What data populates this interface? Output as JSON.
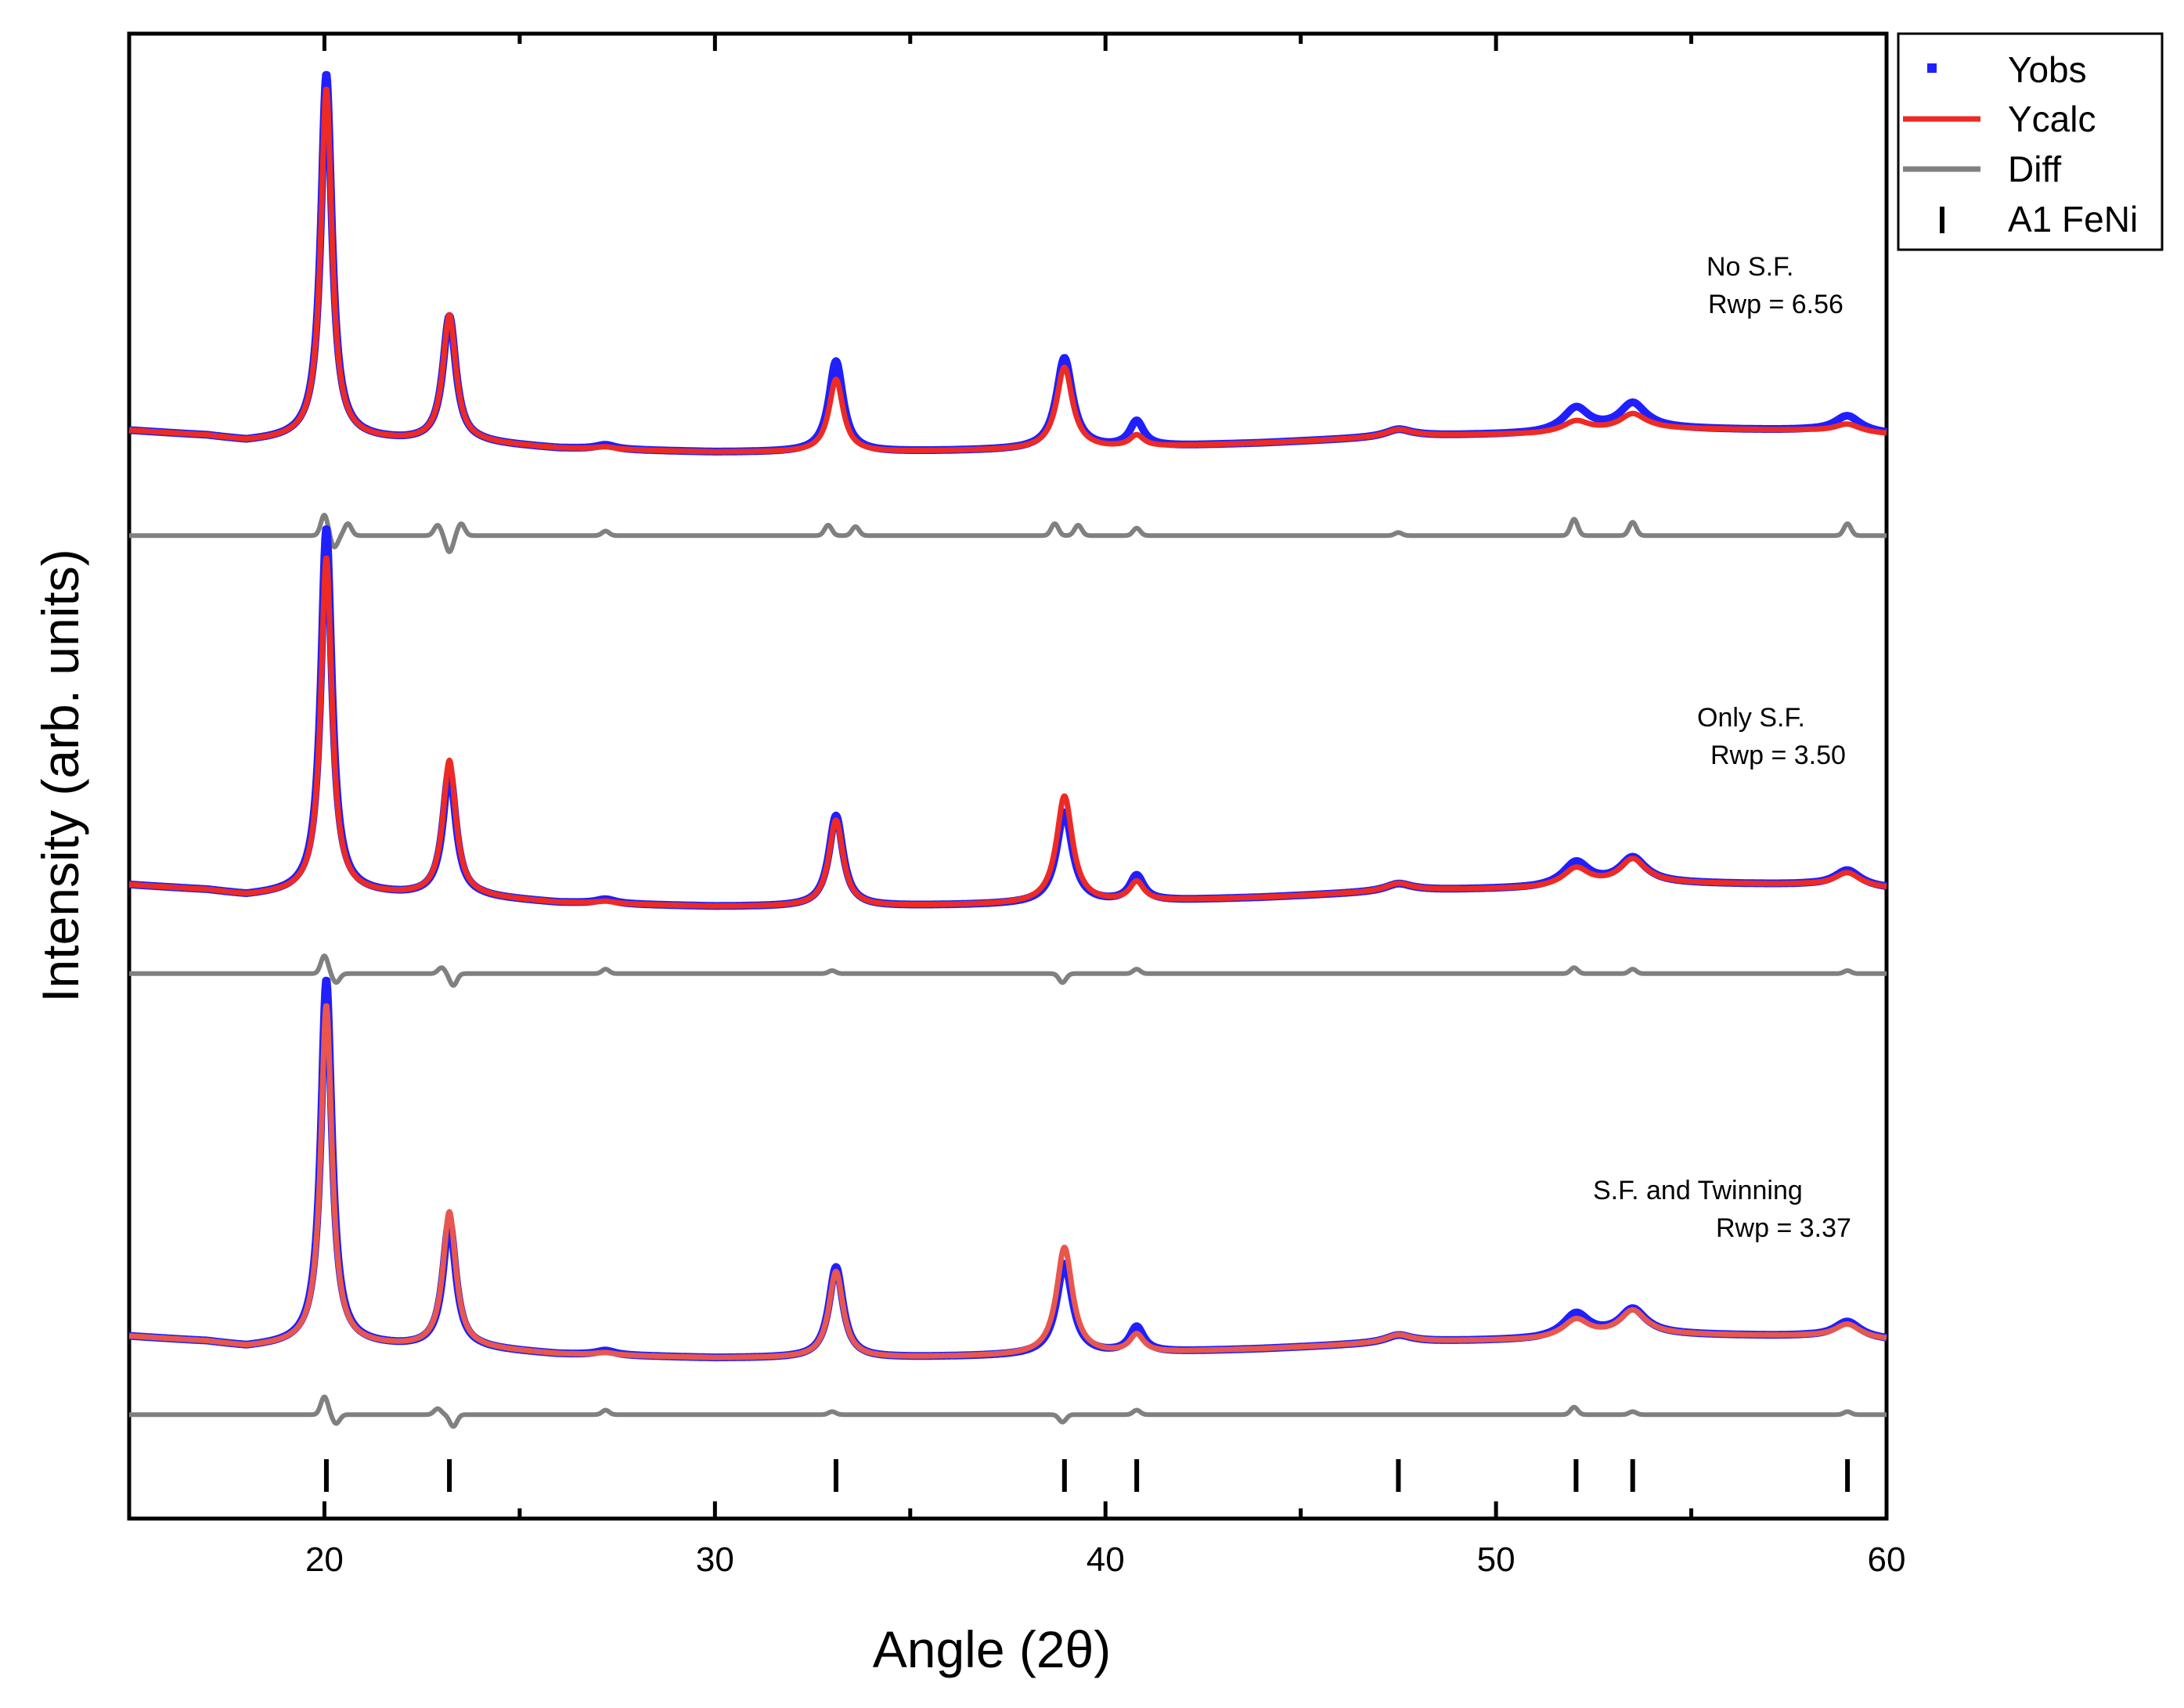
{
  "chart_data": {
    "type": "line",
    "xlabel": "Angle (2θ)",
    "ylabel": "Intensity (arb. units)",
    "xlim": [
      15,
      60
    ],
    "ylim": [
      0,
      100
    ],
    "x_ticks": [
      20,
      30,
      40,
      50,
      60
    ],
    "x_minor_ticks": [
      15,
      25,
      35,
      45,
      55
    ],
    "y_ticks_labeled": false,
    "grid": false,
    "legend": {
      "position": "top-right-outside",
      "entries": [
        {
          "label": "Yobs",
          "marker": "square",
          "color": "#1f1fff"
        },
        {
          "label": "Ycalc",
          "marker": "line",
          "color": "#ee2a24"
        },
        {
          "label": "Diff",
          "marker": "line",
          "color": "#808080"
        },
        {
          "label": "A1 FeNi",
          "marker": "vbar",
          "color": "#000000"
        }
      ]
    },
    "peaks": [
      {
        "pos": 20.05,
        "amp": 1.0,
        "w": 0.17
      },
      {
        "pos": 23.2,
        "amp": 0.345,
        "w": 0.2
      },
      {
        "pos": 27.2,
        "amp": 0.012,
        "w": 0.3
      },
      {
        "pos": 33.1,
        "amp": 0.25,
        "w": 0.22
      },
      {
        "pos": 38.95,
        "amp": 0.25,
        "w": 0.25
      },
      {
        "pos": 40.8,
        "amp": 0.07,
        "w": 0.22
      },
      {
        "pos": 47.5,
        "amp": 0.02,
        "w": 0.4
      },
      {
        "pos": 52.05,
        "amp": 0.065,
        "w": 0.4
      },
      {
        "pos": 53.5,
        "amp": 0.07,
        "w": 0.4
      },
      {
        "pos": 59.0,
        "amp": 0.045,
        "w": 0.4
      }
    ],
    "baseline": [
      [
        15,
        0.06
      ],
      [
        17,
        0.045
      ],
      [
        18,
        0.03
      ],
      [
        20,
        0.04
      ],
      [
        22,
        0.03
      ],
      [
        24,
        0.025
      ],
      [
        26,
        0.01
      ],
      [
        30,
        0.0
      ],
      [
        34,
        0.0
      ],
      [
        37,
        0.005
      ],
      [
        40,
        0.01
      ],
      [
        44,
        0.025
      ],
      [
        48,
        0.045
      ],
      [
        51,
        0.05
      ],
      [
        54,
        0.065
      ],
      [
        58,
        0.06
      ],
      [
        60,
        0.05
      ]
    ],
    "series_groups": [
      {
        "name": "No S.F.",
        "label_line1": "No S.F.",
        "label_line2": "Rwp = 6.56",
        "scale": 24.5,
        "baseline_y": 71.8,
        "diff_y": 66.2,
        "calc_factors": [
          0.96,
          1.01,
          0.55,
          0.8,
          0.9,
          0.45,
          1.0,
          0.45,
          0.6,
          0.5
        ],
        "calc_color": "#ee2a24",
        "diff_features": [
          [
            20.0,
            1.4
          ],
          [
            20.25,
            -0.8
          ],
          [
            20.6,
            0.8
          ],
          [
            22.9,
            0.7
          ],
          [
            23.2,
            -1.1
          ],
          [
            23.5,
            0.8
          ],
          [
            27.2,
            0.3
          ],
          [
            32.9,
            0.7
          ],
          [
            33.6,
            0.6
          ],
          [
            38.7,
            0.8
          ],
          [
            39.3,
            0.7
          ],
          [
            40.8,
            0.5
          ],
          [
            47.5,
            0.2
          ],
          [
            52.0,
            1.1
          ],
          [
            53.5,
            0.9
          ],
          [
            59.0,
            0.8
          ]
        ]
      },
      {
        "name": "Only S.F.",
        "label_line1": "Only S.F.",
        "label_line2": "Rwp = 3.50",
        "scale": 24.5,
        "baseline_y": 41.2,
        "diff_y": 36.7,
        "calc_factors": [
          0.92,
          1.08,
          0.55,
          0.95,
          1.18,
          0.75,
          1.05,
          0.75,
          0.95,
          0.85
        ],
        "calc_color": "#ee2a24",
        "diff_features": [
          [
            20.0,
            1.2
          ],
          [
            20.3,
            -0.6
          ],
          [
            23.0,
            0.4
          ],
          [
            23.3,
            -0.8
          ],
          [
            27.2,
            0.3
          ],
          [
            33.0,
            0.2
          ],
          [
            38.9,
            -0.6
          ],
          [
            40.8,
            0.3
          ],
          [
            52.0,
            0.4
          ],
          [
            53.5,
            0.3
          ],
          [
            59.0,
            0.2
          ]
        ]
      },
      {
        "name": "S.F. and Twinning",
        "label_line1": "S.F. and Twinning",
        "label_line2": "Rwp = 3.37",
        "scale": 24.5,
        "baseline_y": 10.8,
        "diff_y": 7.0,
        "calc_factors": [
          0.93,
          1.08,
          0.55,
          0.95,
          1.18,
          0.7,
          1.05,
          0.75,
          0.95,
          0.85
        ],
        "calc_color": "#e8564e",
        "diff_features": [
          [
            20.0,
            1.2
          ],
          [
            20.3,
            -0.6
          ],
          [
            22.9,
            0.4
          ],
          [
            23.3,
            -0.8
          ],
          [
            27.2,
            0.3
          ],
          [
            33.0,
            0.2
          ],
          [
            38.9,
            -0.5
          ],
          [
            40.8,
            0.3
          ],
          [
            52.0,
            0.5
          ],
          [
            53.5,
            0.2
          ],
          [
            59.0,
            0.2
          ]
        ]
      }
    ],
    "reflections": {
      "name": "A1 FeNi",
      "positions": [
        20.05,
        23.2,
        33.1,
        38.95,
        40.8,
        47.5,
        52.05,
        53.5,
        59.0
      ],
      "y_low": 1.8,
      "y_high": 4.0
    }
  }
}
